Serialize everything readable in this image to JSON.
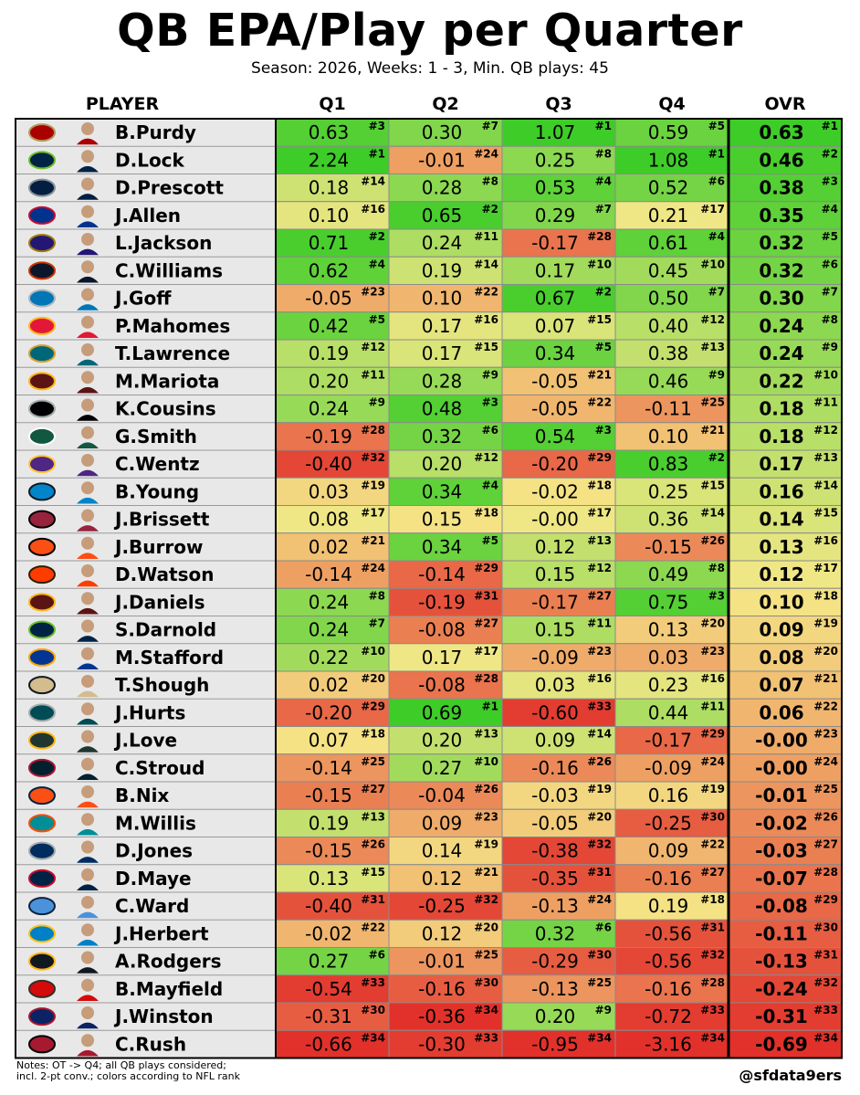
{
  "title": "QB EPA/Play per Quarter",
  "subtitle": "Season: 2026, Weeks: 1 - 3, Min. QB plays: 45",
  "notes": [
    "Notes: OT -> Q4; all QB plays considered;",
    "incl. 2-pt conv.; colors according to NFL rank"
  ],
  "handle": "@sfdata9ers",
  "chart_data": {
    "type": "table",
    "columns": [
      "PLAYER",
      "Q1",
      "Q2",
      "Q3",
      "Q4",
      "OVR"
    ],
    "rows": [
      {
        "player": "B.Purdy",
        "team_logo": "49ers-logo-icon",
        "q": [
          [
            "0.63",
            "#3"
          ],
          [
            "0.30",
            "#7"
          ],
          [
            "1.07",
            "#1"
          ],
          [
            "0.59",
            "#5"
          ]
        ],
        "ovr": [
          "0.63",
          "#1"
        ]
      },
      {
        "player": "D.Lock",
        "team_logo": "seahawks-logo-icon",
        "q": [
          [
            "2.24",
            "#1"
          ],
          [
            "-0.01",
            "#24"
          ],
          [
            "0.25",
            "#8"
          ],
          [
            "1.08",
            "#1"
          ]
        ],
        "ovr": [
          "0.46",
          "#2"
        ]
      },
      {
        "player": "D.Prescott",
        "team_logo": "cowboys-logo-icon",
        "q": [
          [
            "0.18",
            "#14"
          ],
          [
            "0.28",
            "#8"
          ],
          [
            "0.53",
            "#4"
          ],
          [
            "0.52",
            "#6"
          ]
        ],
        "ovr": [
          "0.38",
          "#3"
        ]
      },
      {
        "player": "J.Allen",
        "team_logo": "bills-logo-icon",
        "q": [
          [
            "0.10",
            "#16"
          ],
          [
            "0.65",
            "#2"
          ],
          [
            "0.29",
            "#7"
          ],
          [
            "0.21",
            "#17"
          ]
        ],
        "ovr": [
          "0.35",
          "#4"
        ]
      },
      {
        "player": "L.Jackson",
        "team_logo": "ravens-logo-icon",
        "q": [
          [
            "0.71",
            "#2"
          ],
          [
            "0.24",
            "#11"
          ],
          [
            "-0.17",
            "#28"
          ],
          [
            "0.61",
            "#4"
          ]
        ],
        "ovr": [
          "0.32",
          "#5"
        ]
      },
      {
        "player": "C.Williams",
        "team_logo": "bears-logo-icon",
        "q": [
          [
            "0.62",
            "#4"
          ],
          [
            "0.19",
            "#14"
          ],
          [
            "0.17",
            "#10"
          ],
          [
            "0.45",
            "#10"
          ]
        ],
        "ovr": [
          "0.32",
          "#6"
        ]
      },
      {
        "player": "J.Goff",
        "team_logo": "lions-logo-icon",
        "q": [
          [
            "-0.05",
            "#23"
          ],
          [
            "0.10",
            "#22"
          ],
          [
            "0.67",
            "#2"
          ],
          [
            "0.50",
            "#7"
          ]
        ],
        "ovr": [
          "0.30",
          "#7"
        ]
      },
      {
        "player": "P.Mahomes",
        "team_logo": "chiefs-logo-icon",
        "q": [
          [
            "0.42",
            "#5"
          ],
          [
            "0.17",
            "#16"
          ],
          [
            "0.07",
            "#15"
          ],
          [
            "0.40",
            "#12"
          ]
        ],
        "ovr": [
          "0.24",
          "#8"
        ]
      },
      {
        "player": "T.Lawrence",
        "team_logo": "jaguars-logo-icon",
        "q": [
          [
            "0.19",
            "#12"
          ],
          [
            "0.17",
            "#15"
          ],
          [
            "0.34",
            "#5"
          ],
          [
            "0.38",
            "#13"
          ]
        ],
        "ovr": [
          "0.24",
          "#9"
        ]
      },
      {
        "player": "M.Mariota",
        "team_logo": "commanders-logo-icon",
        "q": [
          [
            "0.20",
            "#11"
          ],
          [
            "0.28",
            "#9"
          ],
          [
            "-0.05",
            "#21"
          ],
          [
            "0.46",
            "#9"
          ]
        ],
        "ovr": [
          "0.22",
          "#10"
        ]
      },
      {
        "player": "K.Cousins",
        "team_logo": "raiders-logo-icon",
        "q": [
          [
            "0.24",
            "#9"
          ],
          [
            "0.48",
            "#3"
          ],
          [
            "-0.05",
            "#22"
          ],
          [
            "-0.11",
            "#25"
          ]
        ],
        "ovr": [
          "0.18",
          "#11"
        ]
      },
      {
        "player": "G.Smith",
        "team_logo": "jets-logo-icon",
        "q": [
          [
            "-0.19",
            "#28"
          ],
          [
            "0.32",
            "#6"
          ],
          [
            "0.54",
            "#3"
          ],
          [
            "0.10",
            "#21"
          ]
        ],
        "ovr": [
          "0.18",
          "#12"
        ]
      },
      {
        "player": "C.Wentz",
        "team_logo": "vikings-logo-icon",
        "q": [
          [
            "-0.40",
            "#32"
          ],
          [
            "0.20",
            "#12"
          ],
          [
            "-0.20",
            "#29"
          ],
          [
            "0.83",
            "#2"
          ]
        ],
        "ovr": [
          "0.17",
          "#13"
        ]
      },
      {
        "player": "B.Young",
        "team_logo": "panthers-logo-icon",
        "q": [
          [
            "0.03",
            "#19"
          ],
          [
            "0.34",
            "#4"
          ],
          [
            "-0.02",
            "#18"
          ],
          [
            "0.25",
            "#15"
          ]
        ],
        "ovr": [
          "0.16",
          "#14"
        ]
      },
      {
        "player": "J.Brissett",
        "team_logo": "cardinals-logo-icon",
        "q": [
          [
            "0.08",
            "#17"
          ],
          [
            "0.15",
            "#18"
          ],
          [
            "-0.00",
            "#17"
          ],
          [
            "0.36",
            "#14"
          ]
        ],
        "ovr": [
          "0.14",
          "#15"
        ]
      },
      {
        "player": "J.Burrow",
        "team_logo": "bengals-logo-icon",
        "q": [
          [
            "0.02",
            "#21"
          ],
          [
            "0.34",
            "#5"
          ],
          [
            "0.12",
            "#13"
          ],
          [
            "-0.15",
            "#26"
          ]
        ],
        "ovr": [
          "0.13",
          "#16"
        ]
      },
      {
        "player": "D.Watson",
        "team_logo": "browns-logo-icon",
        "q": [
          [
            "-0.14",
            "#24"
          ],
          [
            "-0.14",
            "#29"
          ],
          [
            "0.15",
            "#12"
          ],
          [
            "0.49",
            "#8"
          ]
        ],
        "ovr": [
          "0.12",
          "#17"
        ]
      },
      {
        "player": "J.Daniels",
        "team_logo": "commanders-logo-icon",
        "q": [
          [
            "0.24",
            "#8"
          ],
          [
            "-0.19",
            "#31"
          ],
          [
            "-0.17",
            "#27"
          ],
          [
            "0.75",
            "#3"
          ]
        ],
        "ovr": [
          "0.10",
          "#18"
        ]
      },
      {
        "player": "S.Darnold",
        "team_logo": "seahawks-logo-icon",
        "q": [
          [
            "0.24",
            "#7"
          ],
          [
            "-0.08",
            "#27"
          ],
          [
            "0.15",
            "#11"
          ],
          [
            "0.13",
            "#20"
          ]
        ],
        "ovr": [
          "0.09",
          "#19"
        ]
      },
      {
        "player": "M.Stafford",
        "team_logo": "rams-logo-icon",
        "q": [
          [
            "0.22",
            "#10"
          ],
          [
            "0.17",
            "#17"
          ],
          [
            "-0.09",
            "#23"
          ],
          [
            "0.03",
            "#23"
          ]
        ],
        "ovr": [
          "0.08",
          "#20"
        ]
      },
      {
        "player": "T.Shough",
        "team_logo": "saints-logo-icon",
        "q": [
          [
            "0.02",
            "#20"
          ],
          [
            "-0.08",
            "#28"
          ],
          [
            "0.03",
            "#16"
          ],
          [
            "0.23",
            "#16"
          ]
        ],
        "ovr": [
          "0.07",
          "#21"
        ]
      },
      {
        "player": "J.Hurts",
        "team_logo": "eagles-logo-icon",
        "q": [
          [
            "-0.20",
            "#29"
          ],
          [
            "0.69",
            "#1"
          ],
          [
            "-0.60",
            "#33"
          ],
          [
            "0.44",
            "#11"
          ]
        ],
        "ovr": [
          "0.06",
          "#22"
        ]
      },
      {
        "player": "J.Love",
        "team_logo": "packers-logo-icon",
        "q": [
          [
            "0.07",
            "#18"
          ],
          [
            "0.20",
            "#13"
          ],
          [
            "0.09",
            "#14"
          ],
          [
            "-0.17",
            "#29"
          ]
        ],
        "ovr": [
          "-0.00",
          "#23"
        ]
      },
      {
        "player": "C.Stroud",
        "team_logo": "texans-logo-icon",
        "q": [
          [
            "-0.14",
            "#25"
          ],
          [
            "0.27",
            "#10"
          ],
          [
            "-0.16",
            "#26"
          ],
          [
            "-0.09",
            "#24"
          ]
        ],
        "ovr": [
          "-0.00",
          "#24"
        ]
      },
      {
        "player": "B.Nix",
        "team_logo": "broncos-logo-icon",
        "q": [
          [
            "-0.15",
            "#27"
          ],
          [
            "-0.04",
            "#26"
          ],
          [
            "-0.03",
            "#19"
          ],
          [
            "0.16",
            "#19"
          ]
        ],
        "ovr": [
          "-0.01",
          "#25"
        ]
      },
      {
        "player": "M.Willis",
        "team_logo": "dolphins-logo-icon",
        "q": [
          [
            "0.19",
            "#13"
          ],
          [
            "0.09",
            "#23"
          ],
          [
            "-0.05",
            "#20"
          ],
          [
            "-0.25",
            "#30"
          ]
        ],
        "ovr": [
          "-0.02",
          "#26"
        ]
      },
      {
        "player": "D.Jones",
        "team_logo": "colts-logo-icon",
        "q": [
          [
            "-0.15",
            "#26"
          ],
          [
            "0.14",
            "#19"
          ],
          [
            "-0.38",
            "#32"
          ],
          [
            "0.09",
            "#22"
          ]
        ],
        "ovr": [
          "-0.03",
          "#27"
        ]
      },
      {
        "player": "D.Maye",
        "team_logo": "patriots-logo-icon",
        "q": [
          [
            "0.13",
            "#15"
          ],
          [
            "0.12",
            "#21"
          ],
          [
            "-0.35",
            "#31"
          ],
          [
            "-0.16",
            "#27"
          ]
        ],
        "ovr": [
          "-0.07",
          "#28"
        ]
      },
      {
        "player": "C.Ward",
        "team_logo": "titans-logo-icon",
        "q": [
          [
            "-0.40",
            "#31"
          ],
          [
            "-0.25",
            "#32"
          ],
          [
            "-0.13",
            "#24"
          ],
          [
            "0.19",
            "#18"
          ]
        ],
        "ovr": [
          "-0.08",
          "#29"
        ]
      },
      {
        "player": "J.Herbert",
        "team_logo": "chargers-logo-icon",
        "q": [
          [
            "-0.02",
            "#22"
          ],
          [
            "0.12",
            "#20"
          ],
          [
            "0.32",
            "#6"
          ],
          [
            "-0.56",
            "#31"
          ]
        ],
        "ovr": [
          "-0.11",
          "#30"
        ]
      },
      {
        "player": "A.Rodgers",
        "team_logo": "steelers-logo-icon",
        "q": [
          [
            "0.27",
            "#6"
          ],
          [
            "-0.01",
            "#25"
          ],
          [
            "-0.29",
            "#30"
          ],
          [
            "-0.56",
            "#32"
          ]
        ],
        "ovr": [
          "-0.13",
          "#31"
        ]
      },
      {
        "player": "B.Mayfield",
        "team_logo": "buccaneers-logo-icon",
        "q": [
          [
            "-0.54",
            "#33"
          ],
          [
            "-0.16",
            "#30"
          ],
          [
            "-0.13",
            "#25"
          ],
          [
            "-0.16",
            "#28"
          ]
        ],
        "ovr": [
          "-0.24",
          "#32"
        ]
      },
      {
        "player": "J.Winston",
        "team_logo": "giants-logo-icon",
        "q": [
          [
            "-0.31",
            "#30"
          ],
          [
            "-0.36",
            "#34"
          ],
          [
            "0.20",
            "#9"
          ],
          [
            "-0.72",
            "#33"
          ]
        ],
        "ovr": [
          "-0.31",
          "#33"
        ]
      },
      {
        "player": "C.Rush",
        "team_logo": "falcons-logo-icon",
        "q": [
          [
            "-0.66",
            "#34"
          ],
          [
            "-0.30",
            "#33"
          ],
          [
            "-0.95",
            "#34"
          ],
          [
            "-3.16",
            "#34"
          ]
        ],
        "ovr": [
          "-0.69",
          "#34"
        ]
      }
    ],
    "color_scale": {
      "basis": "NFL rank",
      "best": "#3ecc28",
      "mid": "#f5e888",
      "worst": "#e2312b"
    }
  },
  "team_colors": {
    "49ers-logo-icon": [
      "#aa0000",
      "#b3995d"
    ],
    "seahawks-logo-icon": [
      "#002244",
      "#69be28"
    ],
    "cowboys-logo-icon": [
      "#041e42",
      "#869397"
    ],
    "bills-logo-icon": [
      "#00338d",
      "#c60c30"
    ],
    "ravens-logo-icon": [
      "#241773",
      "#9e7c0c"
    ],
    "bears-logo-icon": [
      "#0b162a",
      "#c83803"
    ],
    "lions-logo-icon": [
      "#0076b6",
      "#b0b7bc"
    ],
    "chiefs-logo-icon": [
      "#e31837",
      "#ffb81c"
    ],
    "jaguars-logo-icon": [
      "#006778",
      "#d7a22a"
    ],
    "commanders-logo-icon": [
      "#5a1414",
      "#ffb612"
    ],
    "raiders-logo-icon": [
      "#000000",
      "#a5acaf"
    ],
    "jets-logo-icon": [
      "#125740",
      "#ffffff"
    ],
    "vikings-logo-icon": [
      "#4f2683",
      "#ffc62f"
    ],
    "panthers-logo-icon": [
      "#0085ca",
      "#101820"
    ],
    "cardinals-logo-icon": [
      "#97233f",
      "#000000"
    ],
    "bengals-logo-icon": [
      "#fb4f14",
      "#000000"
    ],
    "browns-logo-icon": [
      "#ff3c00",
      "#311d00"
    ],
    "rams-logo-icon": [
      "#003594",
      "#ffa300"
    ],
    "saints-logo-icon": [
      "#d3bc8d",
      "#101820"
    ],
    "eagles-logo-icon": [
      "#004c54",
      "#a5acaf"
    ],
    "packers-logo-icon": [
      "#203731",
      "#ffb612"
    ],
    "texans-logo-icon": [
      "#03202f",
      "#a71930"
    ],
    "broncos-logo-icon": [
      "#fb4f14",
      "#002244"
    ],
    "dolphins-logo-icon": [
      "#008e97",
      "#fc4c02"
    ],
    "colts-logo-icon": [
      "#002c5f",
      "#a2aaad"
    ],
    "patriots-logo-icon": [
      "#002244",
      "#c60c30"
    ],
    "titans-logo-icon": [
      "#4b92db",
      "#0c2340"
    ],
    "chargers-logo-icon": [
      "#0080c6",
      "#ffc20e"
    ],
    "steelers-logo-icon": [
      "#101820",
      "#ffb612"
    ],
    "buccaneers-logo-icon": [
      "#d50a0a",
      "#34302b"
    ],
    "giants-logo-icon": [
      "#0b2265",
      "#a71930"
    ],
    "falcons-logo-icon": [
      "#a71930",
      "#000000"
    ]
  }
}
